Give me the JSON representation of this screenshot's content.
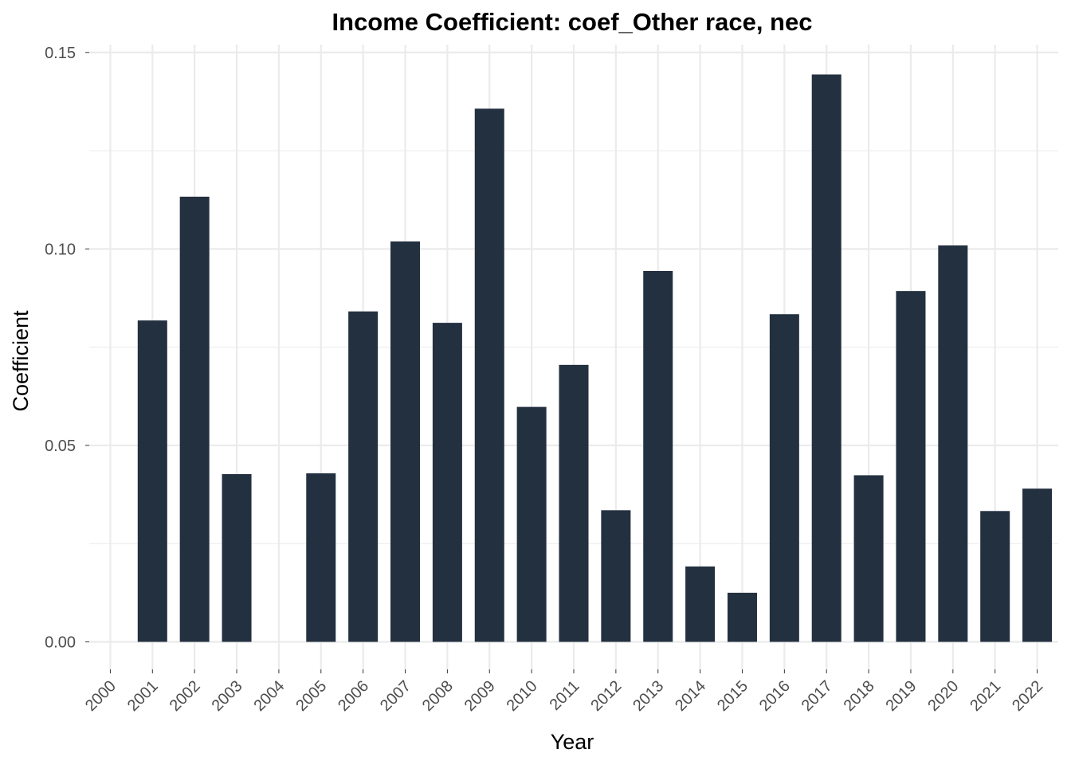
{
  "chart_data": {
    "type": "bar",
    "title": "Income Coefficient: coef_Other race, nec",
    "xlabel": "Year",
    "ylabel": "Coefficient",
    "categories": [
      "2000",
      "2001",
      "2002",
      "2003",
      "2004",
      "2005",
      "2006",
      "2007",
      "2008",
      "2009",
      "2010",
      "2011",
      "2012",
      "2013",
      "2014",
      "2015",
      "2016",
      "2017",
      "2018",
      "2019",
      "2020",
      "2021",
      "2022"
    ],
    "values": [
      null,
      0.0818,
      0.1133,
      0.0427,
      null,
      0.0429,
      0.0841,
      0.1019,
      0.0812,
      0.1357,
      0.0598,
      0.0705,
      0.0335,
      0.0944,
      0.0192,
      0.0125,
      0.0834,
      0.1444,
      0.0424,
      0.0893,
      0.1009,
      0.0333,
      0.039
    ],
    "ylim": [
      -0.007,
      0.152
    ],
    "yticks": [
      "0.00",
      "0.05",
      "0.10",
      "0.15"
    ],
    "grid": true,
    "bar_color": "#233040"
  }
}
